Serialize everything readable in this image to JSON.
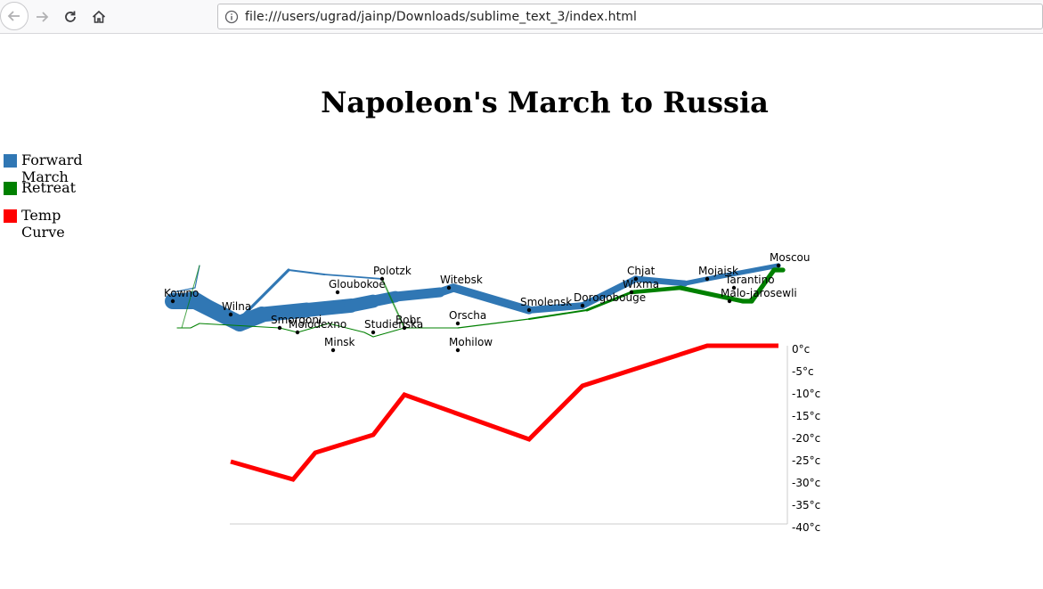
{
  "browser": {
    "url": "file:///users/ugrad/jainp/Downloads/sublime_text_3/index.html"
  },
  "title": "Napoleon's March to Russia",
  "legend": [
    {
      "label": "Forward March",
      "color": "#3077b4"
    },
    {
      "label": "Retreat",
      "color": "#008000"
    },
    {
      "label": "Temp Curve",
      "color": "#ff0000"
    }
  ],
  "chart_data": {
    "type": "line",
    "title": "Napoleon's March to Russia",
    "cities": [
      {
        "name": "Kowno",
        "lon": 24.0,
        "lat": 55.0
      },
      {
        "name": "Wilna",
        "lon": 25.3,
        "lat": 54.7
      },
      {
        "name": "Smorgoni",
        "lon": 26.4,
        "lat": 54.4
      },
      {
        "name": "Moiodexno",
        "lon": 26.8,
        "lat": 54.3
      },
      {
        "name": "Gloubokoe",
        "lon": 27.7,
        "lat": 55.2
      },
      {
        "name": "Minsk",
        "lon": 27.6,
        "lat": 53.9
      },
      {
        "name": "Studienska",
        "lon": 28.5,
        "lat": 54.3
      },
      {
        "name": "Polotzk",
        "lon": 28.7,
        "lat": 55.5
      },
      {
        "name": "Bobr",
        "lon": 29.2,
        "lat": 54.4
      },
      {
        "name": "Witebsk",
        "lon": 30.2,
        "lat": 55.3
      },
      {
        "name": "Orscha",
        "lon": 30.4,
        "lat": 54.5
      },
      {
        "name": "Mohilow",
        "lon": 30.4,
        "lat": 53.9
      },
      {
        "name": "Smolensk",
        "lon": 32.0,
        "lat": 54.8
      },
      {
        "name": "Dorogobouge",
        "lon": 33.2,
        "lat": 54.9
      },
      {
        "name": "Wixma",
        "lon": 34.3,
        "lat": 55.2
      },
      {
        "name": "Chjat",
        "lon": 34.4,
        "lat": 55.5
      },
      {
        "name": "Mojaisk",
        "lon": 36.0,
        "lat": 55.5
      },
      {
        "name": "Moscou",
        "lon": 37.6,
        "lat": 55.8
      },
      {
        "name": "Tarantino",
        "lon": 36.6,
        "lat": 55.3
      },
      {
        "name": "Malo-jarosewli",
        "lon": 36.5,
        "lat": 55.0
      }
    ],
    "forward_march": [
      {
        "group": "main",
        "points": [
          {
            "lon": 24.0,
            "lat": 55.0,
            "survivors": 340000
          },
          {
            "lon": 24.5,
            "lat": 55.0,
            "survivors": 340000
          },
          {
            "lon": 25.5,
            "lat": 54.5,
            "survivors": 340000
          },
          {
            "lon": 26.0,
            "lat": 54.7,
            "survivors": 320000
          },
          {
            "lon": 27.0,
            "lat": 54.8,
            "survivors": 300000
          },
          {
            "lon": 28.0,
            "lat": 54.9,
            "survivors": 280000
          },
          {
            "lon": 28.5,
            "lat": 55.0,
            "survivors": 240000
          },
          {
            "lon": 29.0,
            "lat": 55.1,
            "survivors": 210000
          },
          {
            "lon": 30.0,
            "lat": 55.2,
            "survivors": 180000
          },
          {
            "lon": 30.3,
            "lat": 55.3,
            "survivors": 175000
          },
          {
            "lon": 32.0,
            "lat": 54.8,
            "survivors": 145000
          },
          {
            "lon": 33.2,
            "lat": 54.9,
            "survivors": 140000
          },
          {
            "lon": 34.4,
            "lat": 55.5,
            "survivors": 127100
          },
          {
            "lon": 35.5,
            "lat": 55.4,
            "survivors": 100000
          },
          {
            "lon": 36.0,
            "lat": 55.5,
            "survivors": 100000
          },
          {
            "lon": 37.6,
            "lat": 55.8,
            "survivors": 100000
          }
        ]
      },
      {
        "group": "north",
        "points": [
          {
            "lon": 24.0,
            "lat": 55.1,
            "survivors": 60000
          },
          {
            "lon": 24.5,
            "lat": 55.2,
            "survivors": 60000
          },
          {
            "lon": 25.5,
            "lat": 54.6,
            "survivors": 60000
          },
          {
            "lon": 26.6,
            "lat": 55.7,
            "survivors": 40000
          },
          {
            "lon": 27.4,
            "lat": 55.6,
            "survivors": 33000
          },
          {
            "lon": 28.7,
            "lat": 55.5,
            "survivors": 33000
          }
        ]
      },
      {
        "group": "south",
        "points": [
          {
            "lon": 24.0,
            "lat": 55.2,
            "survivors": 22000
          },
          {
            "lon": 24.5,
            "lat": 55.3,
            "survivors": 22000
          },
          {
            "lon": 24.6,
            "lat": 55.8,
            "survivors": 6000
          }
        ]
      }
    ],
    "retreat": [
      {
        "group": "main",
        "points": [
          {
            "lon": 37.7,
            "lat": 55.7,
            "survivors": 100000
          },
          {
            "lon": 37.5,
            "lat": 55.7,
            "survivors": 98000
          },
          {
            "lon": 37.0,
            "lat": 55.0,
            "survivors": 97000
          },
          {
            "lon": 36.8,
            "lat": 55.0,
            "survivors": 96000
          },
          {
            "lon": 35.4,
            "lat": 55.3,
            "survivors": 87000
          },
          {
            "lon": 34.3,
            "lat": 55.2,
            "survivors": 55000
          },
          {
            "lon": 33.3,
            "lat": 54.8,
            "survivors": 37000
          },
          {
            "lon": 32.0,
            "lat": 54.6,
            "survivors": 24000
          },
          {
            "lon": 30.4,
            "lat": 54.4,
            "survivors": 20000
          },
          {
            "lon": 29.2,
            "lat": 54.4,
            "survivors": 20000
          },
          {
            "lon": 28.5,
            "lat": 54.2,
            "survivors": 20000
          },
          {
            "lon": 28.3,
            "lat": 54.3,
            "survivors": 20000
          },
          {
            "lon": 27.5,
            "lat": 54.5,
            "survivors": 20000
          },
          {
            "lon": 26.8,
            "lat": 54.3,
            "survivors": 12000
          },
          {
            "lon": 26.4,
            "lat": 54.4,
            "survivors": 14000
          },
          {
            "lon": 24.6,
            "lat": 54.5,
            "survivors": 8000
          },
          {
            "lon": 24.4,
            "lat": 54.4,
            "survivors": 4000
          },
          {
            "lon": 24.2,
            "lat": 54.4,
            "survivors": 4000
          },
          {
            "lon": 24.1,
            "lat": 54.4,
            "survivors": 4000
          }
        ]
      },
      {
        "group": "north",
        "points": [
          {
            "lon": 28.7,
            "lat": 55.5,
            "survivors": 33000
          },
          {
            "lon": 29.2,
            "lat": 54.4,
            "survivors": 30000
          }
        ]
      },
      {
        "group": "south",
        "points": [
          {
            "lon": 24.6,
            "lat": 55.8,
            "survivors": 6000
          },
          {
            "lon": 24.2,
            "lat": 54.4,
            "survivors": 6000
          },
          {
            "lon": 24.1,
            "lat": 54.4,
            "survivors": 6000
          }
        ]
      }
    ],
    "temperature": [
      {
        "lon": 37.6,
        "temp": 0
      },
      {
        "lon": 36.0,
        "temp": 0
      },
      {
        "lon": 33.2,
        "temp": -9
      },
      {
        "lon": 32.0,
        "temp": -21
      },
      {
        "lon": 29.2,
        "temp": -11
      },
      {
        "lon": 28.5,
        "temp": -20
      },
      {
        "lon": 27.2,
        "temp": -24
      },
      {
        "lon": 26.7,
        "temp": -30
      },
      {
        "lon": 25.3,
        "temp": -26
      }
    ],
    "temp_axis": {
      "ticks": [
        "0°c",
        "-5°c",
        "-10°c",
        "-15°c",
        "-20°c",
        "-25°c",
        "-30°c",
        "-35°c",
        "-40°c"
      ],
      "ylim": [
        -40,
        0
      ]
    },
    "xlim_lon": [
      24.0,
      37.6
    ]
  }
}
